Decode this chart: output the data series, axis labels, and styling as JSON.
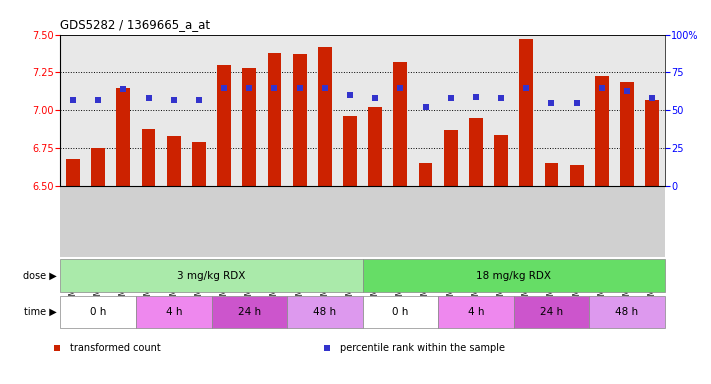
{
  "title": "GDS5282 / 1369665_a_at",
  "samples": [
    "GSM306951",
    "GSM306953",
    "GSM306955",
    "GSM306957",
    "GSM306959",
    "GSM306961",
    "GSM306963",
    "GSM306965",
    "GSM306967",
    "GSM306969",
    "GSM306971",
    "GSM306973",
    "GSM306975",
    "GSM306977",
    "GSM306979",
    "GSM306981",
    "GSM306983",
    "GSM306985",
    "GSM306987",
    "GSM306989",
    "GSM306991",
    "GSM306993",
    "GSM306995",
    "GSM306997"
  ],
  "transformed_count": [
    6.68,
    6.75,
    7.15,
    6.88,
    6.83,
    6.79,
    7.3,
    7.28,
    7.38,
    7.37,
    7.42,
    6.96,
    7.02,
    7.32,
    6.65,
    6.87,
    6.95,
    6.84,
    7.47,
    6.65,
    6.64,
    7.23,
    7.19,
    7.07
  ],
  "percentile_rank": [
    57,
    57,
    64,
    58,
    57,
    57,
    65,
    65,
    65,
    65,
    65,
    60,
    58,
    65,
    52,
    58,
    59,
    58,
    65,
    55,
    55,
    65,
    63,
    58
  ],
  "ylim_left": [
    6.5,
    7.5
  ],
  "ylim_right": [
    0,
    100
  ],
  "yticks_left": [
    6.5,
    6.75,
    7.0,
    7.25,
    7.5
  ],
  "yticks_right": [
    0,
    25,
    50,
    75,
    100
  ],
  "bar_color": "#cc2200",
  "dot_color": "#3333cc",
  "dose_groups": [
    {
      "label": "3 mg/kg RDX",
      "start": 0,
      "end": 12,
      "color": "#aaeaaa"
    },
    {
      "label": "18 mg/kg RDX",
      "start": 12,
      "end": 24,
      "color": "#66dd66"
    }
  ],
  "time_groups": [
    {
      "label": "0 h",
      "start": 0,
      "end": 3,
      "color": "#ffffff"
    },
    {
      "label": "4 h",
      "start": 3,
      "end": 6,
      "color": "#ee88ee"
    },
    {
      "label": "24 h",
      "start": 6,
      "end": 9,
      "color": "#cc55cc"
    },
    {
      "label": "48 h",
      "start": 9,
      "end": 12,
      "color": "#dd99ee"
    },
    {
      "label": "0 h",
      "start": 12,
      "end": 15,
      "color": "#ffffff"
    },
    {
      "label": "4 h",
      "start": 15,
      "end": 18,
      "color": "#ee88ee"
    },
    {
      "label": "24 h",
      "start": 18,
      "end": 21,
      "color": "#cc55cc"
    },
    {
      "label": "48 h",
      "start": 21,
      "end": 24,
      "color": "#dd99ee"
    }
  ],
  "legend_items": [
    {
      "label": "transformed count",
      "color": "#cc2200",
      "marker": "s"
    },
    {
      "label": "percentile rank within the sample",
      "color": "#3333cc",
      "marker": "s"
    }
  ],
  "bg_color": "#ffffff",
  "plot_bg_color": "#e8e8e8",
  "label_bg_color": "#d0d0d0"
}
